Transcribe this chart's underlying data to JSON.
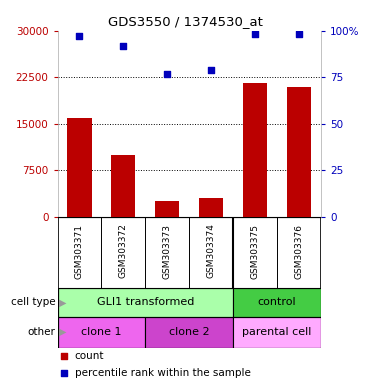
{
  "title": "GDS3550 / 1374530_at",
  "samples": [
    "GSM303371",
    "GSM303372",
    "GSM303373",
    "GSM303374",
    "GSM303375",
    "GSM303376"
  ],
  "bar_values": [
    16000,
    10000,
    2500,
    3000,
    21500,
    21000
  ],
  "percentile_values": [
    97,
    92,
    77,
    79,
    98,
    98
  ],
  "ylim_left": [
    0,
    30000
  ],
  "ylim_right": [
    0,
    100
  ],
  "yticks_left": [
    0,
    7500,
    15000,
    22500,
    30000
  ],
  "yticks_right": [
    0,
    25,
    50,
    75,
    100
  ],
  "ytick_labels_left": [
    "0",
    "7500",
    "15000",
    "22500",
    "30000"
  ],
  "ytick_labels_right": [
    "0",
    "25",
    "50",
    "75",
    "100%"
  ],
  "bar_color": "#bb0000",
  "scatter_color": "#0000bb",
  "cell_type_row": {
    "groups": [
      {
        "text": "GLI1 transformed",
        "cols": [
          0,
          1,
          2,
          3
        ],
        "color": "#aaffaa"
      },
      {
        "text": "control",
        "cols": [
          4,
          5
        ],
        "color": "#44cc44"
      }
    ]
  },
  "other_row": {
    "groups": [
      {
        "text": "clone 1",
        "cols": [
          0,
          1
        ],
        "color": "#ee66ee"
      },
      {
        "text": "clone 2",
        "cols": [
          2,
          3
        ],
        "color": "#cc44cc"
      },
      {
        "text": "parental cell",
        "cols": [
          4,
          5
        ],
        "color": "#ffaaff"
      }
    ]
  },
  "legend_items": [
    {
      "color": "#bb0000",
      "label": "count"
    },
    {
      "color": "#0000bb",
      "label": "percentile rank within the sample"
    }
  ],
  "bg_color": "#ffffff",
  "gray_bg": "#c8c8c8"
}
